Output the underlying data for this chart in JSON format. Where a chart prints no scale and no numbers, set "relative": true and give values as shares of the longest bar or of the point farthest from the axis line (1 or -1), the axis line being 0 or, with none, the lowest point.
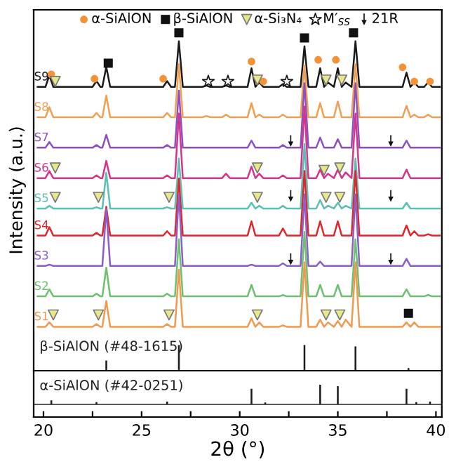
{
  "chart_data": [
    {
      "type": "line",
      "relative": true,
      "ylabel": "Intensity (a.u.)",
      "xlim": [
        19.5,
        40.3
      ],
      "tick_labels": false,
      "legend": "top",
      "x": [
        19.7,
        20.1,
        20.3,
        20.5,
        22.5,
        22.7,
        22.9,
        23.0,
        23.2,
        23.4,
        26.1,
        26.3,
        26.5,
        26.7,
        26.9,
        27.1,
        28.1,
        28.3,
        28.5,
        29.1,
        29.3,
        29.5,
        30.4,
        30.6,
        30.8,
        31.0,
        31.2,
        32.0,
        32.2,
        32.4,
        33.1,
        33.3,
        33.5,
        33.9,
        34.1,
        34.3,
        34.5,
        34.8,
        35.0,
        35.2,
        35.4,
        35.7,
        35.9,
        36.1,
        38.3,
        38.5,
        38.7,
        38.9,
        39.1,
        39.4,
        39.6,
        39.8,
        40.2
      ],
      "series": [
        {
          "name": "S9",
          "color": "#1a1a1a",
          "values": [
            0.84,
            0.84,
            0.874,
            0.84,
            0.84,
            0.857,
            0.84,
            0.84,
            0.899,
            0.84,
            0.84,
            0.857,
            0.84,
            0.84,
            0.975,
            0.84,
            0.84,
            0.844,
            0.84,
            0.84,
            0.844,
            0.84,
            0.84,
            0.895,
            0.84,
            0.853,
            0.84,
            0.84,
            0.848,
            0.84,
            0.84,
            0.96,
            0.84,
            0.84,
            0.895,
            0.84,
            0.853,
            0.84,
            0.895,
            0.84,
            0.853,
            0.84,
            0.975,
            0.84,
            0.84,
            0.882,
            0.84,
            0.853,
            0.84,
            0.84,
            0.853,
            0.84,
            0.84
          ]
        },
        {
          "name": "S8",
          "color": "#f0a050",
          "values": [
            0.75,
            0.75,
            0.78,
            0.75,
            0.75,
            0.763,
            0.75,
            0.75,
            0.814,
            0.75,
            0.75,
            0.763,
            0.75,
            0.75,
            0.907,
            0.75,
            0.75,
            0.754,
            0.75,
            0.75,
            0.758,
            0.75,
            0.75,
            0.792,
            0.75,
            0.758,
            0.75,
            0.75,
            0.758,
            0.75,
            0.75,
            0.903,
            0.75,
            0.75,
            0.792,
            0.75,
            0.75,
            0.75,
            0.797,
            0.75,
            0.75,
            0.75,
            0.907,
            0.75,
            0.75,
            0.784,
            0.75,
            0.758,
            0.75,
            0.75,
            0.758,
            0.75,
            0.75
          ]
        },
        {
          "name": "S7",
          "color": "#8a4fc0",
          "values": [
            0.66,
            0.66,
            0.677,
            0.66,
            0.66,
            0.668,
            0.66,
            0.66,
            0.698,
            0.66,
            0.66,
            0.668,
            0.66,
            0.66,
            0.829,
            0.66,
            0.66,
            0.66,
            0.66,
            0.66,
            0.66,
            0.66,
            0.66,
            0.681,
            0.66,
            0.66,
            0.66,
            0.66,
            0.668,
            0.66,
            0.66,
            0.851,
            0.66,
            0.66,
            0.69,
            0.66,
            0.66,
            0.66,
            0.685,
            0.66,
            0.66,
            0.66,
            0.851,
            0.66,
            0.66,
            0.681,
            0.66,
            0.66,
            0.66,
            0.66,
            0.66,
            0.66,
            0.66
          ]
        },
        {
          "name": "S6",
          "color": "#d6338a",
          "values": [
            0.57,
            0.57,
            0.591,
            0.57,
            0.57,
            0.578,
            0.57,
            0.57,
            0.621,
            0.57,
            0.57,
            0.578,
            0.57,
            0.57,
            0.761,
            0.57,
            0.57,
            0.57,
            0.57,
            0.57,
            0.583,
            0.57,
            0.57,
            0.604,
            0.57,
            0.583,
            0.57,
            0.57,
            0.578,
            0.57,
            0.57,
            0.782,
            0.57,
            0.57,
            0.595,
            0.57,
            0.583,
            0.57,
            0.595,
            0.57,
            0.587,
            0.57,
            0.761,
            0.57,
            0.57,
            0.595,
            0.57,
            0.57,
            0.57,
            0.57,
            0.57,
            0.57,
            0.57
          ]
        },
        {
          "name": "S5",
          "color": "#5bbfb5",
          "values": [
            0.48,
            0.48,
            0.488,
            0.48,
            0.48,
            0.484,
            0.48,
            0.48,
            0.586,
            0.48,
            0.48,
            0.484,
            0.48,
            0.48,
            0.628,
            0.48,
            0.48,
            0.48,
            0.48,
            0.48,
            0.48,
            0.48,
            0.48,
            0.497,
            0.48,
            0.488,
            0.48,
            0.48,
            0.488,
            0.48,
            0.48,
            0.671,
            0.48,
            0.48,
            0.505,
            0.48,
            0.488,
            0.48,
            0.497,
            0.48,
            0.488,
            0.48,
            0.628,
            0.48,
            0.48,
            0.497,
            0.48,
            0.48,
            0.48,
            0.48,
            0.48,
            0.48,
            0.48
          ]
        },
        {
          "name": "S4",
          "color": "#e0262a",
          "values": [
            0.4,
            0.4,
            0.425,
            0.4,
            0.4,
            0.408,
            0.4,
            0.4,
            0.485,
            0.4,
            0.4,
            0.413,
            0.4,
            0.4,
            0.569,
            0.4,
            0.4,
            0.4,
            0.4,
            0.4,
            0.4,
            0.4,
            0.4,
            0.442,
            0.4,
            0.4,
            0.4,
            0.4,
            0.421,
            0.4,
            0.4,
            0.591,
            0.4,
            0.4,
            0.442,
            0.4,
            0.4,
            0.4,
            0.442,
            0.4,
            0.4,
            0.4,
            0.591,
            0.4,
            0.4,
            0.43,
            0.4,
            0.413,
            0.4,
            0.4,
            0.404,
            0.4,
            0.4
          ]
        },
        {
          "name": "S3",
          "color": "#8a5fc8",
          "values": [
            0.31,
            0.31,
            0.314,
            0.31,
            0.31,
            0.31,
            0.31,
            0.31,
            0.479,
            0.31,
            0.31,
            0.31,
            0.31,
            0.31,
            0.522,
            0.31,
            0.31,
            0.31,
            0.31,
            0.31,
            0.31,
            0.31,
            0.31,
            0.314,
            0.31,
            0.31,
            0.31,
            0.31,
            0.318,
            0.31,
            0.31,
            0.522,
            0.31,
            0.31,
            0.323,
            0.31,
            0.31,
            0.31,
            0.31,
            0.31,
            0.31,
            0.31,
            0.522,
            0.31,
            0.31,
            0.331,
            0.31,
            0.31,
            0.31,
            0.31,
            0.31,
            0.31,
            0.31
          ]
        },
        {
          "name": "S2",
          "color": "#6cc070",
          "values": [
            0.22,
            0.22,
            0.241,
            0.22,
            0.22,
            0.228,
            0.22,
            0.22,
            0.305,
            0.22,
            0.22,
            0.228,
            0.22,
            0.22,
            0.389,
            0.22,
            0.22,
            0.22,
            0.22,
            0.22,
            0.22,
            0.22,
            0.22,
            0.254,
            0.22,
            0.22,
            0.22,
            0.22,
            0.224,
            0.22,
            0.22,
            0.411,
            0.22,
            0.22,
            0.254,
            0.22,
            0.22,
            0.22,
            0.254,
            0.22,
            0.22,
            0.22,
            0.389,
            0.22,
            0.22,
            0.241,
            0.22,
            0.22,
            0.22,
            0.22,
            0.224,
            0.22,
            0.22
          ]
        },
        {
          "name": "S1",
          "color": "#f09a50",
          "values": [
            0.13,
            0.13,
            0.143,
            0.13,
            0.13,
            0.138,
            0.13,
            0.13,
            0.206,
            0.13,
            0.13,
            0.138,
            0.13,
            0.13,
            0.299,
            0.13,
            0.13,
            0.13,
            0.13,
            0.13,
            0.13,
            0.13,
            0.13,
            0.155,
            0.13,
            0.143,
            0.13,
            0.13,
            0.134,
            0.13,
            0.13,
            0.321,
            0.13,
            0.13,
            0.151,
            0.13,
            0.143,
            0.13,
            0.147,
            0.13,
            0.151,
            0.13,
            0.321,
            0.13,
            0.13,
            0.143,
            0.13,
            0.143,
            0.13,
            0.13,
            0.13,
            0.13,
            0.13
          ]
        },
        {
          "name": "β-SiAlON (#48-1615)",
          "type": "bar",
          "color": "#1a1a1a",
          "x": [
            23.2,
            26.9,
            33.3,
            35.9,
            38.6
          ],
          "values": [
            0.03,
            0.076,
            0.076,
            0.072,
            0.008
          ]
        },
        {
          "name": "α-SiAlON",
          "type": "scatter",
          "marker": "circle",
          "color": "#f39237",
          "x": [
            20.4,
            22.6,
            26.1,
            30.6,
            31.2,
            34.0,
            34.9,
            38.3,
            38.9,
            39.7
          ],
          "values": [
            0.877,
            0.864,
            0.864,
            0.915,
            0.856,
            0.92,
            0.92,
            0.898,
            0.856,
            0.856
          ]
        },
        {
          "name": "β-SiAlON",
          "type": "scatter",
          "marker": "square",
          "color": "#111111",
          "x": [
            23.3,
            26.9,
            33.3,
            35.8,
            38.6
          ],
          "values": [
            0.91,
            1.0,
            0.985,
            1.0,
            0.17
          ]
        },
        {
          "name": "α-Si₃N₄",
          "type": "scatter",
          "marker": "triangle",
          "color": "#e8e88a",
          "x": [
            20.6,
            30.9,
            34.4,
            35.2,
            20.6,
            30.9,
            34.3,
            35.1,
            20.6,
            22.8,
            26.4,
            30.9,
            34.4,
            35.1,
            20.5,
            22.8,
            26.4,
            30.9,
            34.4,
            35.1
          ],
          "values": [
            0.856,
            0.86,
            0.86,
            0.86,
            0.6,
            0.6,
            0.593,
            0.6,
            0.513,
            0.513,
            0.513,
            0.513,
            0.513,
            0.513,
            0.165,
            0.165,
            0.165,
            0.165,
            0.165,
            0.165
          ]
        },
        {
          "name": "M′$_{SS}$",
          "type": "scatter",
          "marker": "star",
          "color": "#ffffff",
          "x": [
            28.4,
            29.4,
            32.4
          ],
          "values": [
            0.856,
            0.856,
            0.856
          ]
        },
        {
          "name": "21R",
          "type": "scatter",
          "color": "#111111",
          "x": [
            32.6,
            37.7,
            32.6,
            37.7,
            32.6,
            37.7
          ],
          "values": [
            0.68,
            0.68,
            0.517,
            0.517,
            0.33,
            0.33
          ]
        }
      ]
    },
    {
      "type": "bar",
      "relative": true,
      "xlabel": "2θ (°)",
      "xlim": [
        19.5,
        40.3
      ],
      "tick_labels": "x",
      "xticks": [
        20,
        {
          "value": 22.5,
          "label": null
        },
        25,
        {
          "value": 27.5,
          "label": null
        },
        30,
        {
          "value": 32.5,
          "label": null
        },
        35,
        {
          "value": 37.5,
          "label": null
        },
        40
      ],
      "series": [
        {
          "name": "α-SiAlON (#42-0251)",
          "color": "#1a1a1a",
          "x": [
            20.4,
            22.7,
            26.3,
            30.6,
            31.3,
            34.1,
            35.0,
            38.5,
            39.0,
            39.7
          ],
          "values": [
            0.21,
            0.12,
            0.14,
            0.79,
            0.1,
            1.0,
            0.93,
            0.79,
            0.12,
            0.14
          ]
        }
      ]
    }
  ]
}
